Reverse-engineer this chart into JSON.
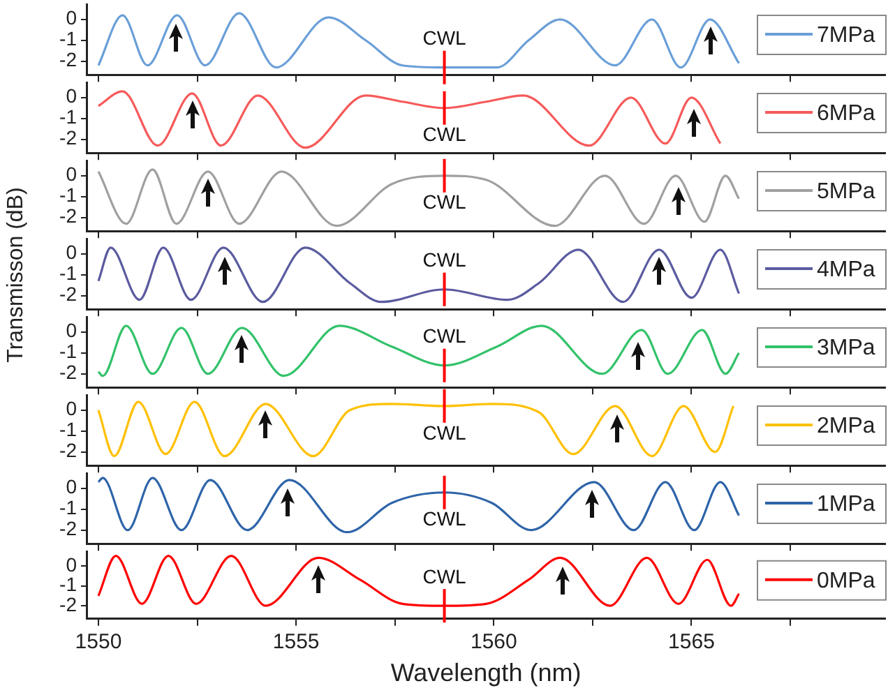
{
  "chart_data": [
    {
      "type": "line",
      "x": [
        1550.0,
        1550.61,
        1551.24,
        1551.99,
        1552.7,
        1553.56,
        1554.49,
        1555.82,
        1556.76,
        1557.69,
        1558.75,
        1560.08,
        1560.88,
        1561.68,
        1563.07,
        1564.0,
        1564.73,
        1565.47,
        1566.2
      ],
      "series": [
        {
          "name": "7MPa",
          "color": "#6a9fd8",
          "values": [
            -2.2,
            0.2,
            -2.2,
            0.2,
            -2.2,
            0.3,
            -2.3,
            0.1,
            -1.0,
            -2.2,
            -2.3,
            -2.3,
            -1.0,
            0.0,
            -2.2,
            0.0,
            -2.3,
            0.0,
            -2.1
          ]
        }
      ],
      "xlim": [
        1549.7,
        1569.9
      ],
      "xticks": [
        1550,
        {
          "value": 1552.5,
          "label": null
        },
        1555,
        {
          "value": 1557.5,
          "label": null
        },
        1560,
        {
          "value": 1562.5,
          "label": null
        },
        1565,
        {
          "value": 1567.5,
          "label": null
        }
      ],
      "ylim": [
        -2.65,
        0.7
      ],
      "yticks": [
        0,
        -1,
        -2
      ],
      "tick_labels": "y",
      "legend": "right",
      "ref_lines": [
        {
          "axis": "x",
          "value": 1558.75,
          "label": "CWL",
          "color": "#ff0000"
        }
      ]
    },
    {
      "type": "line",
      "x": [
        1550.0,
        1550.61,
        1551.5,
        1552.37,
        1553.1,
        1554.03,
        1555.23,
        1556.76,
        1557.69,
        1558.75,
        1559.81,
        1560.74,
        1562.41,
        1563.47,
        1564.34,
        1565.0,
        1565.73
      ],
      "series": [
        {
          "name": "6MPa",
          "color": "#f65a5a",
          "values": [
            -0.4,
            0.3,
            -2.3,
            0.2,
            -2.3,
            0.1,
            -2.4,
            0.1,
            -0.2,
            -0.5,
            -0.2,
            0.1,
            -2.3,
            0.0,
            -2.2,
            0.0,
            -2.2
          ]
        }
      ],
      "xlim": [
        1549.7,
        1569.9
      ],
      "xticks": [
        1550,
        {
          "value": 1552.5,
          "label": null
        },
        1555,
        {
          "value": 1557.5,
          "label": null
        },
        1560,
        {
          "value": 1562.5,
          "label": null
        },
        1565,
        {
          "value": 1567.5,
          "label": null
        }
      ],
      "ylim": [
        -2.65,
        0.7
      ],
      "yticks": [
        0,
        -1,
        -2
      ],
      "tick_labels": "y",
      "legend": "right",
      "ref_lines": [
        {
          "axis": "x",
          "value": 1558.75,
          "label": "CWL",
          "color": "#ff0000"
        }
      ]
    },
    {
      "type": "line",
      "x": [
        1550.0,
        1550.7,
        1551.37,
        1551.97,
        1552.77,
        1553.56,
        1554.63,
        1556.02,
        1557.42,
        1558.75,
        1559.81,
        1561.54,
        1562.81,
        1563.8,
        1564.6,
        1565.33,
        1565.86,
        1566.2
      ],
      "series": [
        {
          "name": "5MPa",
          "color": "#a0a0a0",
          "values": [
            0.2,
            -2.3,
            0.3,
            -2.3,
            0.2,
            -2.3,
            0.2,
            -2.4,
            -0.4,
            0.0,
            -0.2,
            -2.4,
            0.0,
            -2.3,
            0.0,
            -2.2,
            0.0,
            -1.1
          ]
        }
      ],
      "xlim": [
        1549.7,
        1569.9
      ],
      "xticks": [
        1550,
        {
          "value": 1552.5,
          "label": null
        },
        1555,
        {
          "value": 1557.5,
          "label": null
        },
        1560,
        {
          "value": 1562.5,
          "label": null
        },
        1565,
        {
          "value": 1567.5,
          "label": null
        }
      ],
      "ylim": [
        -2.65,
        0.7
      ],
      "yticks": [
        0,
        -1,
        -2
      ],
      "tick_labels": "y",
      "legend": "right",
      "ref_lines": [
        {
          "axis": "x",
          "value": 1558.75,
          "label": "CWL",
          "color": "#ff0000"
        }
      ]
    },
    {
      "type": "line",
      "ylabel": "Transmisson (dB)",
      "x": [
        1550.0,
        1550.31,
        1551.04,
        1551.64,
        1552.34,
        1553.16,
        1554.16,
        1555.23,
        1556.36,
        1557.15,
        1558.75,
        1560.35,
        1561.14,
        1562.14,
        1563.27,
        1564.18,
        1565.0,
        1565.73,
        1566.2
      ],
      "series": [
        {
          "name": "4MPa",
          "color": "#5b5ba0",
          "values": [
            -1.3,
            0.3,
            -2.2,
            0.3,
            -2.2,
            0.3,
            -2.3,
            0.3,
            -1.4,
            -2.3,
            -1.7,
            -2.2,
            -1.4,
            0.2,
            -2.3,
            0.2,
            -2.1,
            0.2,
            -1.9
          ]
        }
      ],
      "xlim": [
        1549.7,
        1569.9
      ],
      "xticks": [
        1550,
        {
          "value": 1552.5,
          "label": null
        },
        1555,
        {
          "value": 1557.5,
          "label": null
        },
        1560,
        {
          "value": 1562.5,
          "label": null
        },
        1565,
        {
          "value": 1567.5,
          "label": null
        }
      ],
      "ylim": [
        -2.65,
        0.7
      ],
      "yticks": [
        0,
        -1,
        -2
      ],
      "tick_labels": "y",
      "legend": "right",
      "ref_lines": [
        {
          "axis": "x",
          "value": 1558.75,
          "label": "CWL",
          "color": "#ff0000"
        }
      ]
    },
    {
      "type": "line",
      "x": [
        1550.0,
        1550.11,
        1550.7,
        1551.37,
        1552.1,
        1552.77,
        1553.63,
        1554.69,
        1556.09,
        1557.42,
        1558.75,
        1560.08,
        1561.21,
        1562.74,
        1563.74,
        1564.4,
        1565.27,
        1565.86,
        1566.2
      ],
      "series": [
        {
          "name": "3MPa",
          "color": "#33c26a",
          "values": [
            -1.9,
            -2.1,
            0.3,
            -2.0,
            0.2,
            -2.0,
            0.2,
            -2.1,
            0.3,
            -0.7,
            -1.6,
            -0.7,
            0.3,
            -2.0,
            0.1,
            -2.0,
            0.1,
            -2.0,
            -1.0
          ]
        }
      ],
      "xlim": [
        1549.7,
        1569.9
      ],
      "xticks": [
        1550,
        {
          "value": 1552.5,
          "label": null
        },
        1555,
        {
          "value": 1557.5,
          "label": null
        },
        1560,
        {
          "value": 1562.5,
          "label": null
        },
        1565,
        {
          "value": 1567.5,
          "label": null
        }
      ],
      "ylim": [
        -2.65,
        0.7
      ],
      "yticks": [
        0,
        -1,
        -2
      ],
      "tick_labels": "y",
      "legend": "right",
      "ref_lines": [
        {
          "axis": "x",
          "value": 1558.75,
          "label": "CWL",
          "color": "#ff0000"
        }
      ]
    },
    {
      "type": "line",
      "x": [
        1550.0,
        1550.4,
        1551.01,
        1551.7,
        1552.43,
        1553.19,
        1554.23,
        1555.43,
        1556.36,
        1557.42,
        1558.75,
        1559.95,
        1561.14,
        1562.01,
        1563.07,
        1564.0,
        1564.8,
        1565.6,
        1566.06
      ],
      "series": [
        {
          "name": "2MPa",
          "color": "#ffc000",
          "values": [
            0.0,
            -2.2,
            0.4,
            -2.1,
            0.4,
            -2.2,
            0.3,
            -2.2,
            0.0,
            0.3,
            0.2,
            0.3,
            -0.1,
            -2.1,
            0.2,
            -2.2,
            0.2,
            -2.0,
            0.2
          ]
        }
      ],
      "xlim": [
        1549.7,
        1569.9
      ],
      "xticks": [
        1550,
        {
          "value": 1552.5,
          "label": null
        },
        1555,
        {
          "value": 1557.5,
          "label": null
        },
        1560,
        {
          "value": 1562.5,
          "label": null
        },
        1565,
        {
          "value": 1567.5,
          "label": null
        }
      ],
      "ylim": [
        -2.65,
        0.7
      ],
      "yticks": [
        0,
        -1,
        -2
      ],
      "tick_labels": "y",
      "legend": "right",
      "ref_lines": [
        {
          "axis": "x",
          "value": 1558.75,
          "label": "CWL",
          "color": "#ff0000"
        }
      ]
    },
    {
      "type": "line",
      "x": [
        1550.0,
        1550.11,
        1550.74,
        1551.37,
        1552.1,
        1552.83,
        1553.76,
        1554.83,
        1556.29,
        1557.42,
        1558.75,
        1559.95,
        1560.94,
        1562.54,
        1563.54,
        1564.34,
        1565.07,
        1565.73,
        1566.2
      ],
      "series": [
        {
          "name": "1MPa",
          "color": "#2e64a8",
          "values": [
            0.3,
            0.5,
            -2.0,
            0.5,
            -2.0,
            0.4,
            -2.0,
            0.4,
            -2.1,
            -0.7,
            -0.2,
            -0.7,
            -2.0,
            0.3,
            -2.0,
            0.3,
            -2.0,
            0.3,
            -1.3
          ]
        }
      ],
      "xlim": [
        1549.7,
        1569.9
      ],
      "xticks": [
        1550,
        {
          "value": 1552.5,
          "label": null
        },
        1555,
        {
          "value": 1557.5,
          "label": null
        },
        1560,
        {
          "value": 1562.5,
          "label": null
        },
        1565,
        {
          "value": 1567.5,
          "label": null
        }
      ],
      "ylim": [
        -2.65,
        0.7
      ],
      "yticks": [
        0,
        -1,
        -2
      ],
      "tick_labels": "y",
      "legend": "right",
      "ref_lines": [
        {
          "axis": "x",
          "value": 1558.75,
          "label": "CWL",
          "color": "#ff0000"
        }
      ]
    },
    {
      "type": "line",
      "xlabel": "Wavelength (nm)",
      "x": [
        1550.0,
        1550.44,
        1551.1,
        1551.77,
        1552.47,
        1553.36,
        1554.23,
        1555.56,
        1556.62,
        1557.69,
        1558.75,
        1559.81,
        1560.88,
        1561.68,
        1562.94,
        1563.87,
        1564.67,
        1565.4,
        1566.0,
        1566.2
      ],
      "series": [
        {
          "name": "0MPa",
          "color": "#ff0000",
          "values": [
            -1.5,
            0.5,
            -1.9,
            0.5,
            -1.9,
            0.5,
            -2.0,
            0.4,
            -0.7,
            -1.9,
            -2.0,
            -1.9,
            -0.7,
            0.4,
            -2.0,
            0.4,
            -1.9,
            0.3,
            -2.0,
            -1.4
          ]
        }
      ],
      "xlim": [
        1549.7,
        1569.9
      ],
      "xticks": [
        1550,
        {
          "value": 1552.5,
          "label": null
        },
        1555,
        {
          "value": 1557.5,
          "label": null
        },
        1560,
        {
          "value": 1562.5,
          "label": null
        },
        1565,
        {
          "value": 1567.5,
          "label": null
        }
      ],
      "ylim": [
        -2.65,
        0.7
      ],
      "yticks": [
        0,
        -1,
        -2
      ],
      "legend": "right",
      "ref_lines": [
        {
          "axis": "x",
          "value": 1558.75,
          "label": "CWL",
          "color": "#ff0000"
        }
      ]
    }
  ]
}
